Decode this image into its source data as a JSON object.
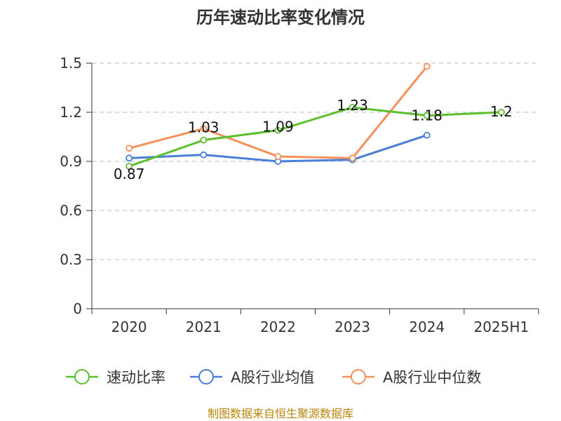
{
  "chart_data": {
    "type": "line",
    "title": "历年速动比率变化情况",
    "categories": [
      "2020",
      "2021",
      "2022",
      "2023",
      "2024",
      "2025H1"
    ],
    "ylim": [
      0,
      1.5
    ],
    "yticks": [
      0,
      0.3,
      0.6,
      0.9,
      1.2,
      1.5
    ],
    "ytick_labels": [
      "0",
      "0.3",
      "0.6",
      "0.9",
      "1.2",
      "1.5"
    ],
    "grid": true,
    "legend_position": "bottom",
    "series": [
      {
        "name": "速动比率",
        "color": "#5bbf2e",
        "values": [
          0.87,
          1.03,
          1.09,
          1.23,
          1.18,
          1.2
        ],
        "data_labels": [
          "0.87",
          "1.03",
          "1.09",
          "1.23",
          "1.18",
          "1.2"
        ]
      },
      {
        "name": "A股行业均值",
        "color": "#4a7fd6",
        "values": [
          0.92,
          0.94,
          0.9,
          0.91,
          1.06,
          null
        ]
      },
      {
        "name": "A股行业中位数",
        "color": "#f4915a",
        "values": [
          0.98,
          1.1,
          0.93,
          0.92,
          1.48,
          null
        ]
      }
    ]
  },
  "footer": {
    "source": "制图数据来自恒生聚源数据库"
  }
}
